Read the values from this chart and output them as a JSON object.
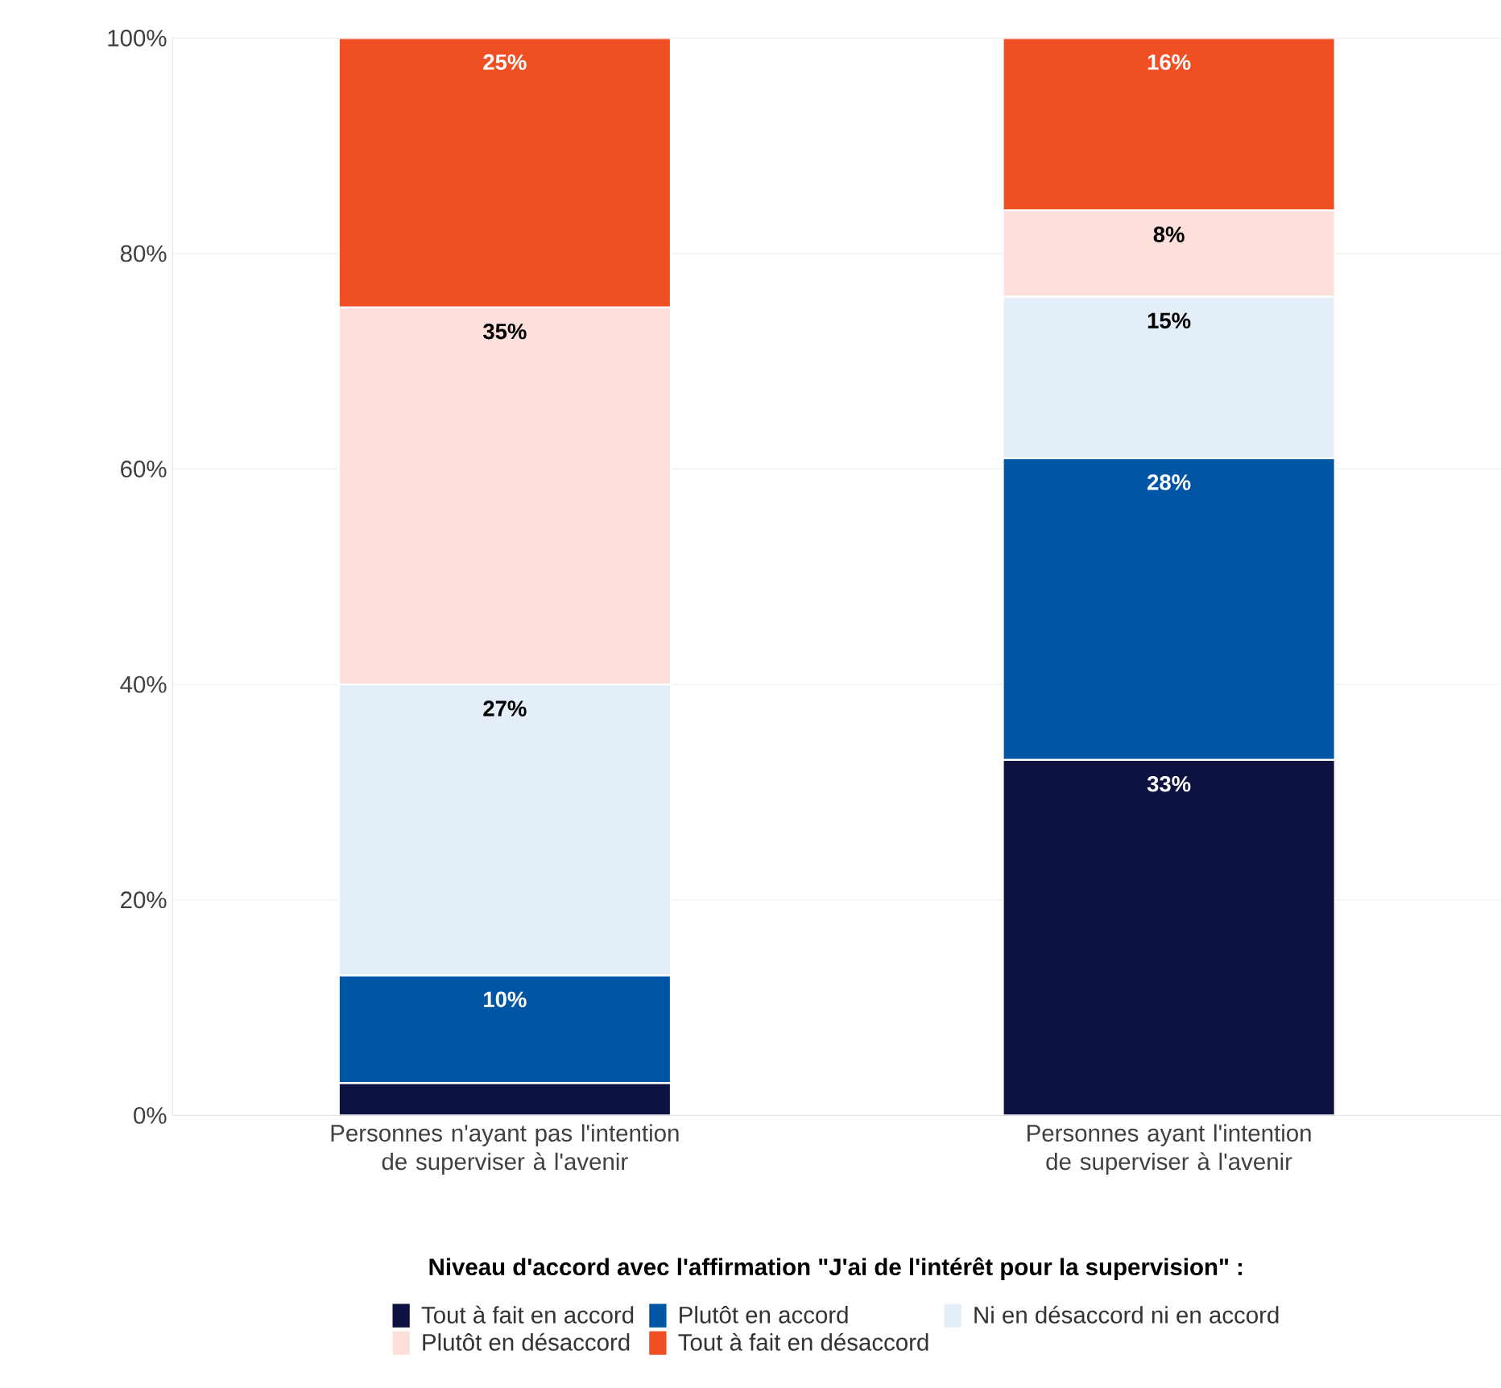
{
  "chart_data": {
    "type": "bar",
    "stacked": true,
    "categories": [
      "Personnes n'ayant pas l'intention de superviser à l'avenir",
      "Personnes ayant l'intention de superviser à l'avenir"
    ],
    "legend_title": "Niveau d'accord avec l'affirmation \"J'ai de l'intérêt pour la supervision\" :",
    "series": [
      {
        "name": "Tout à fait en accord",
        "color": "#0d1240",
        "values": [
          3,
          33
        ],
        "value_labels": [
          null,
          "33%"
        ]
      },
      {
        "name": "Plutôt en accord",
        "color": "#0055a5",
        "values": [
          10,
          28
        ],
        "value_labels": [
          "10%",
          "28%"
        ]
      },
      {
        "name": "Ni en désaccord ni en accord",
        "color": "#e3eef8",
        "values": [
          27,
          15
        ],
        "value_labels": [
          "27%",
          "15%"
        ]
      },
      {
        "name": "Plutôt en désaccord",
        "color": "#fde0dc",
        "values": [
          35,
          8
        ],
        "value_labels": [
          "35%",
          "8%"
        ]
      },
      {
        "name": "Tout à fait en désaccord",
        "color": "#f04e23",
        "values": [
          25,
          16
        ],
        "value_labels": [
          "25%",
          "16%"
        ]
      }
    ],
    "ylim": [
      0,
      100
    ],
    "yticks": [
      {
        "value": 0,
        "label": "0%"
      },
      {
        "value": 20,
        "label": "20%"
      },
      {
        "value": 40,
        "label": "40%"
      },
      {
        "value": 60,
        "label": "60%"
      },
      {
        "value": 80,
        "label": "80%"
      },
      {
        "value": 100,
        "label": "100%"
      }
    ],
    "grid": "y",
    "legend": "bottom"
  }
}
